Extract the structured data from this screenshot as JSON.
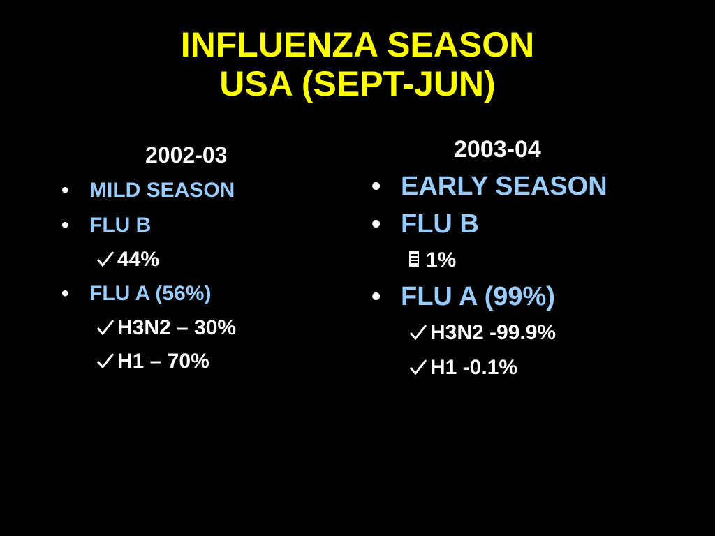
{
  "slide": {
    "title_line1": "INFLUENZA  SEASON",
    "title_line2": "USA (SEPT-JUN)",
    "colors": {
      "background": "#000000",
      "title": "#ffff00",
      "bullet_text": "#99ccff",
      "sub_text": "#ffffff"
    }
  },
  "left": {
    "heading": "2002-03",
    "items": [
      {
        "bullet": "•",
        "text": "MILD SEASON"
      },
      {
        "bullet": "•",
        "text": "FLU B"
      },
      {
        "mark_icon": "checkmark-icon",
        "text": "44%"
      },
      {
        "bullet": "•",
        "text": "FLU A (56%)"
      },
      {
        "mark_icon": "checkmark-icon",
        "text": "H3N2 – 30%"
      },
      {
        "mark_icon": "checkmark-icon",
        "text": "H1 – 70%"
      }
    ]
  },
  "right": {
    "heading": "2003-04",
    "items": [
      {
        "bullet": "•",
        "text": "EARLY SEASON"
      },
      {
        "bullet": "•",
        "text": "FLU B"
      },
      {
        "mark_icon": "square-list-icon",
        "text": "1%"
      },
      {
        "bullet": "•",
        "text": "FLU A (99%)"
      },
      {
        "mark_icon": "checkmark-icon",
        "text": "H3N2 -99.9%"
      },
      {
        "mark_icon": "checkmark-icon",
        "text": "H1 -0.1%"
      }
    ]
  }
}
